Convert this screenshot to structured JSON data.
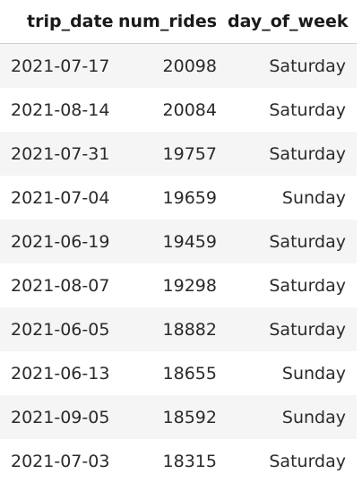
{
  "table": {
    "columns": [
      "trip_date",
      "num_rides",
      "day_of_week"
    ],
    "rows": [
      [
        "2021-07-17",
        "20098",
        "Saturday"
      ],
      [
        "2021-08-14",
        "20084",
        "Saturday"
      ],
      [
        "2021-07-31",
        "19757",
        "Saturday"
      ],
      [
        "2021-07-04",
        "19659",
        "Sunday"
      ],
      [
        "2021-06-19",
        "19459",
        "Saturday"
      ],
      [
        "2021-08-07",
        "19298",
        "Saturday"
      ],
      [
        "2021-06-05",
        "18882",
        "Saturday"
      ],
      [
        "2021-06-13",
        "18655",
        "Sunday"
      ],
      [
        "2021-09-05",
        "18592",
        "Sunday"
      ],
      [
        "2021-07-03",
        "18315",
        "Saturday"
      ]
    ]
  },
  "colors": {
    "striped_row": "#f5f5f5",
    "plain_row": "#ffffff",
    "header_border": "#d0d0d0"
  }
}
